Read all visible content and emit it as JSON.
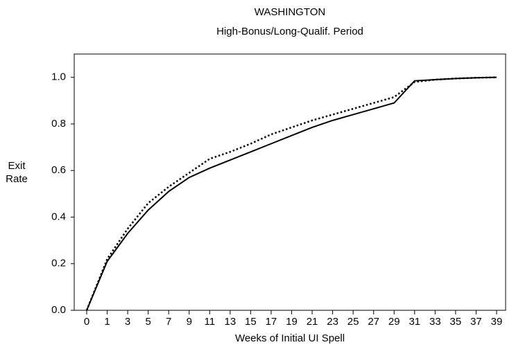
{
  "chart_data": {
    "type": "line",
    "title": "WASHINGTON",
    "subtitle": "High-Bonus/Long-Qualif. Period",
    "xlabel": "Weeks of Initial UI Spell",
    "ylabel": "Exit Rate",
    "categories": [
      0,
      1,
      3,
      5,
      7,
      9,
      11,
      13,
      15,
      17,
      19,
      21,
      23,
      25,
      27,
      29,
      31,
      33,
      35,
      37,
      39
    ],
    "series": [
      {
        "color": "#000000",
        "linestyle": "solid",
        "values": [
          0.0,
          0.21,
          0.33,
          0.43,
          0.51,
          0.57,
          0.61,
          0.645,
          0.68,
          0.715,
          0.75,
          0.785,
          0.815,
          0.84,
          0.865,
          0.89,
          0.985,
          0.99,
          0.995,
          0.998,
          1.0
        ]
      },
      {
        "color": "#000000",
        "linestyle": "dotted",
        "values": [
          0.0,
          0.22,
          0.35,
          0.46,
          0.53,
          0.59,
          0.65,
          0.68,
          0.715,
          0.755,
          0.785,
          0.815,
          0.84,
          0.865,
          0.89,
          0.915,
          0.98,
          0.99,
          0.995,
          0.998,
          1.0
        ]
      }
    ],
    "ylim": [
      0,
      1.1
    ],
    "yticks": [
      {
        "value": 0,
        "label": "0.0"
      },
      {
        "value": 0.2,
        "label": "0.2"
      },
      {
        "value": 0.4,
        "label": "0.4"
      },
      {
        "value": 0.6,
        "label": "0.6"
      },
      {
        "value": 0.8,
        "label": "0.8"
      },
      {
        "value": 1,
        "label": "1.0"
      }
    ],
    "grid": false
  }
}
